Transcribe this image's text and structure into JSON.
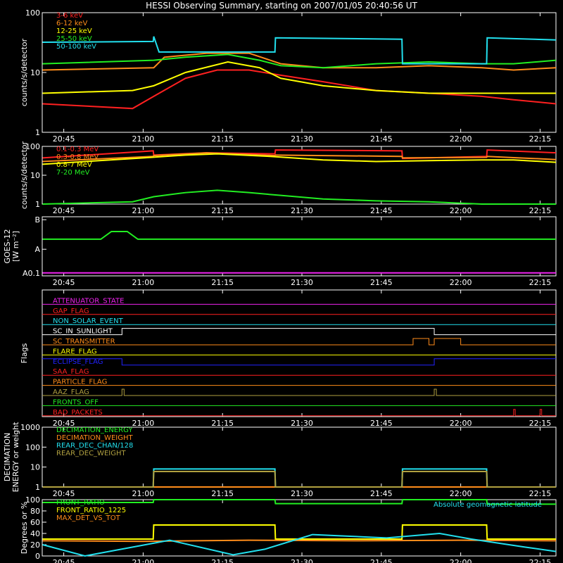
{
  "title": "HESSI Observing Summary, starting on 2007/01/05 20:40:56 UT",
  "time_axis": {
    "ticks": [
      "20:45",
      "21:00",
      "21:15",
      "21:30",
      "21:45",
      "22:00",
      "22:15"
    ],
    "start_min": 40.93,
    "end_min": 138.0
  },
  "colors": {
    "red": "#ff2020",
    "orange": "#ff8c1a",
    "yellow": "#ffff00",
    "green": "#22ee22",
    "cyan": "#22e0ee",
    "magenta": "#ee22ee",
    "blue": "#2222ff",
    "olive": "#b0a040",
    "white": "#ffffff"
  },
  "chart_data": [
    {
      "type": "line",
      "name": "low-energy",
      "ylabel": "counts/s/detector",
      "yscale": "log",
      "ylim": [
        1,
        100
      ],
      "yticks": [
        "1",
        "10",
        "100"
      ],
      "legend": [
        "3-6 keV",
        "6-12 keV",
        "12-25 keV",
        "25-50 keV",
        "50-100 keV"
      ],
      "series": [
        {
          "name": "3-6 keV",
          "color": "red",
          "points": [
            [
              41,
              3
            ],
            [
              58,
              2.5
            ],
            [
              62,
              4
            ],
            [
              68,
              8
            ],
            [
              74,
              11
            ],
            [
              80,
              11
            ],
            [
              86,
              9
            ],
            [
              94,
              7
            ],
            [
              104,
              5
            ],
            [
              114,
              4.5
            ],
            [
              124,
              4
            ],
            [
              130,
              3.5
            ],
            [
              138,
              3
            ]
          ]
        },
        {
          "name": "6-12 keV",
          "color": "orange",
          "points": [
            [
              41,
              11
            ],
            [
              62,
              12
            ],
            [
              64,
              18
            ],
            [
              72,
              21
            ],
            [
              80,
              21
            ],
            [
              86,
              14
            ],
            [
              94,
              12
            ],
            [
              104,
              12
            ],
            [
              114,
              13
            ],
            [
              124,
              12
            ],
            [
              130,
              11
            ],
            [
              138,
              12
            ]
          ]
        },
        {
          "name": "12-25 keV",
          "color": "yellow",
          "points": [
            [
              41,
              4.5
            ],
            [
              58,
              5
            ],
            [
              62,
              6
            ],
            [
              68,
              10
            ],
            [
              76,
              15
            ],
            [
              82,
              12
            ],
            [
              86,
              8
            ],
            [
              94,
              6
            ],
            [
              104,
              5
            ],
            [
              114,
              4.5
            ],
            [
              124,
              4.5
            ],
            [
              130,
              4.5
            ],
            [
              138,
              4.5
            ]
          ]
        },
        {
          "name": "25-50 keV",
          "color": "green",
          "points": [
            [
              41,
              14
            ],
            [
              62,
              16
            ],
            [
              68,
              18
            ],
            [
              76,
              20
            ],
            [
              82,
              16
            ],
            [
              86,
              13
            ],
            [
              94,
              12
            ],
            [
              104,
              14
            ],
            [
              114,
              15
            ],
            [
              124,
              14
            ],
            [
              130,
              14
            ],
            [
              138,
              16
            ]
          ]
        },
        {
          "name": "50-100 keV",
          "color": "cyan",
          "points": [
            [
              41,
              32
            ],
            [
              61.9,
              33
            ],
            [
              62,
              40
            ],
            [
              63,
              22
            ],
            [
              84.9,
              22
            ],
            [
              85,
              38
            ],
            [
              108.9,
              36
            ],
            [
              109,
              14
            ],
            [
              124.9,
              14
            ],
            [
              125,
              38
            ],
            [
              138,
              35
            ]
          ]
        }
      ]
    },
    {
      "type": "line",
      "name": "high-energy",
      "ylabel": "counts/s/detector",
      "yscale": "log",
      "ylim": [
        1,
        100
      ],
      "yticks": [
        "1",
        "10",
        "100"
      ],
      "legend": [
        "0.1-0.3 MeV",
        "0.3-0.8 MeV",
        "0.8-7 MeV",
        "7-20 MeV"
      ],
      "series": [
        {
          "name": "0.1-0.3 MeV",
          "color": "red",
          "points": [
            [
              41,
              40
            ],
            [
              61.9,
              70
            ],
            [
              62,
              50
            ],
            [
              72,
              60
            ],
            [
              84.9,
              55
            ],
            [
              85,
              75
            ],
            [
              108.9,
              70
            ],
            [
              109,
              38
            ],
            [
              124.9,
              45
            ],
            [
              125,
              75
            ],
            [
              138,
              60
            ]
          ]
        },
        {
          "name": "0.3-0.8 MeV",
          "color": "orange",
          "points": [
            [
              41,
              30
            ],
            [
              61.9,
              45
            ],
            [
              62,
              48
            ],
            [
              72,
              60
            ],
            [
              84.9,
              48
            ],
            [
              85,
              50
            ],
            [
              108.9,
              45
            ],
            [
              109,
              40
            ],
            [
              124.9,
              42
            ],
            [
              125,
              45
            ],
            [
              138,
              35
            ]
          ]
        },
        {
          "name": "0.8-7 MeV",
          "color": "yellow",
          "points": [
            [
              41,
              24
            ],
            [
              60,
              40
            ],
            [
              68,
              50
            ],
            [
              74,
              55
            ],
            [
              84,
              45
            ],
            [
              94,
              34
            ],
            [
              104,
              30
            ],
            [
              114,
              32
            ],
            [
              124,
              34
            ],
            [
              130,
              34
            ],
            [
              138,
              28
            ]
          ]
        },
        {
          "name": "7-20 MeV",
          "color": "green",
          "points": [
            [
              41,
              1
            ],
            [
              58,
              1.2
            ],
            [
              62,
              1.8
            ],
            [
              68,
              2.5
            ],
            [
              74,
              3
            ],
            [
              80,
              2.5
            ],
            [
              86,
              2
            ],
            [
              94,
              1.5
            ],
            [
              104,
              1.3
            ],
            [
              114,
              1.2
            ],
            [
              124,
              1
            ],
            [
              138,
              1
            ]
          ]
        }
      ]
    },
    {
      "type": "line",
      "name": "goes",
      "ylabel": "GOES-12",
      "ylabel2": "[W m⁻²]",
      "yticks": [
        "A0.1",
        "A",
        "B"
      ],
      "series": [
        {
          "name": "",
          "color": "green",
          "points": [
            [
              41,
              0.62
            ],
            [
              52,
              0.62
            ],
            [
              54,
              0.75
            ],
            [
              57,
              0.75
            ],
            [
              59,
              0.62
            ],
            [
              138,
              0.62
            ]
          ]
        },
        {
          "name": "",
          "color": "magenta",
          "points": [
            [
              41,
              0.05
            ],
            [
              138,
              0.05
            ]
          ]
        }
      ]
    },
    {
      "type": "line",
      "name": "flags",
      "ylabel": "Flags",
      "flags": [
        {
          "label": "ATTENUATOR_STATE",
          "color": "magenta"
        },
        {
          "label": "GAP_FLAG",
          "color": "red"
        },
        {
          "label": "NON_SOLAR_EVENT",
          "color": "cyan"
        },
        {
          "label": "SC_IN_SUNLIGHT",
          "color": "white"
        },
        {
          "label": "SC_TRANSMITTER",
          "color": "orange"
        },
        {
          "label": "FLARE_FLAG",
          "color": "yellow"
        },
        {
          "label": "ECLIPSE_FLAG",
          "color": "blue"
        },
        {
          "label": "SAA_FLAG",
          "color": "red"
        },
        {
          "label": "PARTICLE_FLAG",
          "color": "orange"
        },
        {
          "label": "AAZ_FLAG",
          "color": "olive"
        },
        {
          "label": "FRONTS_OFF",
          "color": "green"
        },
        {
          "label": "BAD_PACKETS",
          "color": "red"
        }
      ],
      "high_intervals": {
        "SC_IN_SUNLIGHT": [
          [
            56,
            115
          ]
        ],
        "SC_TRANSMITTER": [
          [
            111,
            114
          ],
          [
            115,
            120
          ]
        ],
        "AAZ_FLAG": [
          [
            56,
            56.4
          ],
          [
            115,
            115.4
          ]
        ],
        "BAD_PACKETS": [
          [
            130,
            130.3
          ],
          [
            135,
            135.3
          ]
        ]
      },
      "low_intervals": {
        "ECLIPSE_FLAG": [
          [
            56,
            115
          ]
        ]
      }
    },
    {
      "type": "line",
      "name": "decimation",
      "ylabel": "DECIMATION",
      "ylabel2": "ENERGY or weight",
      "yscale": "log",
      "ylim": [
        1,
        1000
      ],
      "yticks": [
        "1",
        "10",
        "100",
        "1000"
      ],
      "legend": [
        "DECIMATION_ENERGY",
        "DECIMATION_WEIGHT",
        "REAR_DEC_CHAN/128",
        "REAR_DEC_WEIGHT"
      ],
      "series": [
        {
          "name": "DECIMATION_ENERGY",
          "color": "green",
          "points": [
            [
              41,
              1
            ],
            [
              138,
              1
            ]
          ]
        },
        {
          "name": "DECIMATION_WEIGHT",
          "color": "orange",
          "points": [
            [
              41,
              1
            ],
            [
              138,
              1
            ]
          ]
        },
        {
          "name": "REAR_DEC_CHAN/128",
          "color": "cyan",
          "points": [
            [
              41,
              1
            ],
            [
              61.9,
              1
            ],
            [
              62,
              8
            ],
            [
              84.9,
              8
            ],
            [
              85,
              1
            ],
            [
              108.9,
              1
            ],
            [
              109,
              8
            ],
            [
              124.9,
              8
            ],
            [
              125,
              1
            ],
            [
              138,
              1
            ]
          ]
        },
        {
          "name": "REAR_DEC_WEIGHT",
          "color": "olive",
          "points": [
            [
              41,
              1
            ],
            [
              61.9,
              1
            ],
            [
              62,
              6
            ],
            [
              84.9,
              6
            ],
            [
              85,
              1
            ],
            [
              108.9,
              1
            ],
            [
              109,
              6
            ],
            [
              124.9,
              6
            ],
            [
              125,
              1
            ],
            [
              138,
              1
            ]
          ]
        }
      ]
    },
    {
      "type": "line",
      "name": "ratios",
      "ylabel": "Degrees or %",
      "ylim": [
        0,
        100
      ],
      "yticks": [
        "0",
        "20",
        "40",
        "60",
        "80",
        "100"
      ],
      "legend": [
        "FRONT_RATIO",
        "FRONT_RATIO_1225",
        "MAX_DET_VS_TOT"
      ],
      "legend_right": "Absolute geomagnetic latitude",
      "series": [
        {
          "name": "FRONT_RATIO",
          "color": "green",
          "points": [
            [
              41,
              95
            ],
            [
              61.9,
              95
            ],
            [
              62,
              100
            ],
            [
              84.9,
              100
            ],
            [
              85,
              93
            ],
            [
              108.9,
              93
            ],
            [
              109,
              100
            ],
            [
              124.9,
              100
            ],
            [
              125,
              92
            ],
            [
              138,
              92
            ]
          ]
        },
        {
          "name": "FRONT_RATIO_1225",
          "color": "yellow",
          "points": [
            [
              41,
              30
            ],
            [
              61.9,
              30
            ],
            [
              62,
              55
            ],
            [
              84.9,
              55
            ],
            [
              85,
              30
            ],
            [
              108.9,
              30
            ],
            [
              109,
              55
            ],
            [
              124.9,
              55
            ],
            [
              125,
              30
            ],
            [
              138,
              30
            ]
          ]
        },
        {
          "name": "MAX_DET_VS_TOT",
          "color": "orange",
          "points": [
            [
              41,
              27
            ],
            [
              60,
              26
            ],
            [
              80,
              28
            ],
            [
              100,
              27
            ],
            [
              120,
              28
            ],
            [
              138,
              27
            ]
          ]
        },
        {
          "name": "Absolute geomagnetic latitude",
          "color": "cyan",
          "points": [
            [
              41,
              20
            ],
            [
              49,
              0
            ],
            [
              65,
              28
            ],
            [
              77,
              2
            ],
            [
              83,
              12
            ],
            [
              92,
              38
            ],
            [
              106,
              32
            ],
            [
              116,
              40
            ],
            [
              122,
              30
            ],
            [
              132,
              16
            ],
            [
              138,
              8
            ]
          ]
        }
      ]
    }
  ]
}
